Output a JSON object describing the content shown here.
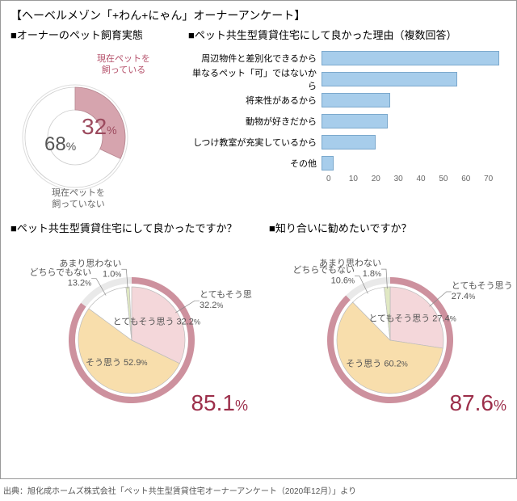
{
  "title": "【ヘーベルメゾン「+わん+にゃん」オーナーアンケート】",
  "footer": "出典：旭化成ホームズ株式会社「ペット共生型賃貸住宅オーナーアンケート（2020年12月）」より",
  "colors": {
    "pink_slice": "#d6a4ae",
    "pink_ring": "#cd919e",
    "cream": "#f8deac",
    "light_pink": "#f4d7da",
    "pale_green": "#e0e8c3",
    "bar_fill": "#a7cdeb",
    "bar_border": "#7ba8cc",
    "accent_text": "#9c2e4a",
    "grey_text": "#888"
  },
  "section1": {
    "label": "■オーナーのペット飼育実態",
    "donut": {
      "have_pet_label": "現在ペットを\n飼っている",
      "have_pet_pct": 32,
      "no_pet_label": "現在ペットを\n飼っていない",
      "no_pet_pct": 68
    }
  },
  "section2": {
    "label": "■ペット共生型賃貸住宅にして良かった理由（複数回答）",
    "xmax": 75,
    "xticks": [
      0,
      10,
      20,
      30,
      40,
      50,
      60,
      70
    ],
    "bars": [
      {
        "label": "周辺物件と差別化できるから",
        "value": 72
      },
      {
        "label": "単なるペット「可」ではないから",
        "value": 55
      },
      {
        "label": "将来性があるから",
        "value": 28
      },
      {
        "label": "動物が好きだから",
        "value": 27
      },
      {
        "label": "しつけ教室が充実しているから",
        "value": 22
      },
      {
        "label": "その他",
        "value": 5
      }
    ]
  },
  "section3": {
    "label": "■ペット共生型賃貸住宅にして良かったですか？",
    "big_pct": "85.1",
    "slices": [
      {
        "label": "とてもそう思う",
        "pct": 32.2,
        "color": "#f4d7da"
      },
      {
        "label": "そう思う",
        "pct": 52.9,
        "color": "#f8deac"
      },
      {
        "label": "どちらでもない",
        "pct": 13.2,
        "color": "#ffffff"
      },
      {
        "label": "あまり思わない",
        "pct": 1.0,
        "color": "#e0e8c3"
      }
    ]
  },
  "section4": {
    "label": "■知り合いに勧めたいですか？",
    "big_pct": "87.6",
    "slices": [
      {
        "label": "とてもそう思う",
        "pct": 27.4,
        "color": "#f4d7da"
      },
      {
        "label": "そう思う",
        "pct": 60.2,
        "color": "#f8deac"
      },
      {
        "label": "どちらでもない",
        "pct": 10.6,
        "color": "#ffffff"
      },
      {
        "label": "あまり思わない",
        "pct": 1.8,
        "color": "#e0e8c3"
      }
    ]
  }
}
